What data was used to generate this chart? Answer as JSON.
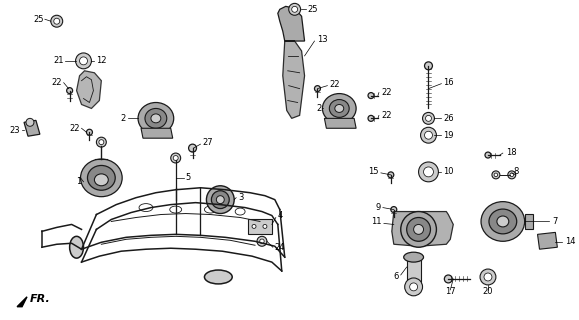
{
  "bg_color": "#ffffff",
  "line_color": "#1a1a1a",
  "fig_width": 5.79,
  "fig_height": 3.2,
  "dpi": 100,
  "fr_label": "FR.",
  "label_fs": 6.0,
  "lw_frame": 1.1,
  "lw_part": 0.9,
  "lw_label": 0.5,
  "part_gray": "#888888",
  "part_light": "#cccccc",
  "part_mid": "#aaaaaa",
  "part_dark": "#555555"
}
